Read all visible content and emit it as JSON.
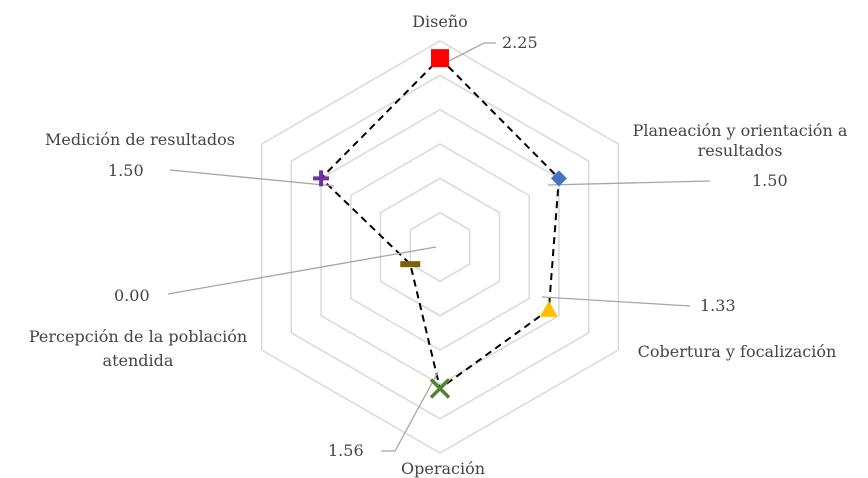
{
  "chart_data": {
    "type": "radar",
    "categories": [
      "Diseño",
      "Planeación y orientación a resultados",
      "Cobertura y focalización",
      "Operación",
      "Percepción de la población atendida",
      "Medición de resultados"
    ],
    "category_label_lines": [
      [
        "Diseño"
      ],
      [
        "Planeación y orientación a",
        "resultados"
      ],
      [
        "Cobertura y focalización"
      ],
      [
        "Operación"
      ],
      [
        "Percepción de la población",
        "atendida"
      ],
      [
        "Medición de resultados"
      ]
    ],
    "values": [
      2.25,
      1.5,
      1.33,
      1.56,
      0.0,
      1.5
    ],
    "value_labels": [
      "2.25",
      "1.50",
      "1.33",
      "1.56",
      "0.00",
      "1.50"
    ],
    "rmin": -0.5,
    "rmax": 2.5,
    "ring_step": 0.5,
    "grid": true,
    "legend": false,
    "series_line_color": "#000000",
    "grid_color": "#d9d9d9",
    "leader_color": "#a6a6a6",
    "point_markers": [
      {
        "shape": "square",
        "color": "#ff0000"
      },
      {
        "shape": "diamond",
        "color": "#4472c4"
      },
      {
        "shape": "triangle",
        "color": "#ffc000"
      },
      {
        "shape": "x",
        "color": "#548235"
      },
      {
        "shape": "dash",
        "color": "#7f6000"
      },
      {
        "shape": "plus",
        "color": "#7030a0"
      }
    ]
  }
}
